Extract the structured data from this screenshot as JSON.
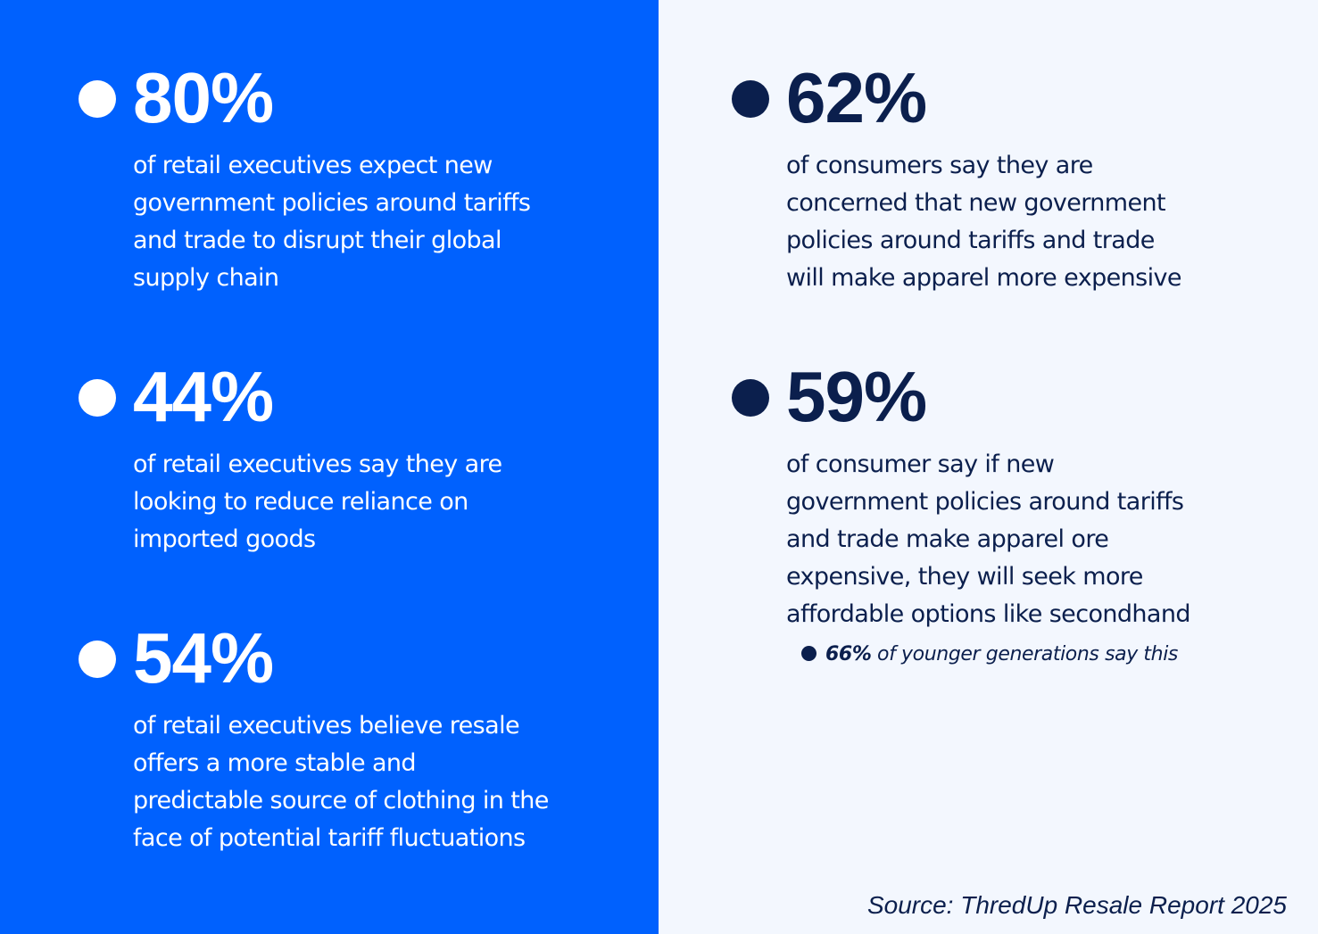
{
  "colors": {
    "left_panel_bg": "#0061fe",
    "right_panel_bg": "#f3f7fe",
    "left_text": "#ffffff",
    "right_text": "#0b1f4d"
  },
  "left_stats": [
    {
      "value": "80%",
      "lines": [
        "of retail executives expect new",
        "government policies around tariffs",
        "and trade to disrupt their global",
        "supply chain"
      ]
    },
    {
      "value": "44%",
      "lines": [
        "of retail executives say they are",
        "looking to reduce reliance on",
        "imported goods"
      ]
    },
    {
      "value": "54%",
      "lines": [
        "of retail executives believe resale",
        "offers a more stable and",
        "predictable source of clothing in the",
        "face of potential tariff fluctuations"
      ]
    }
  ],
  "right_stats": [
    {
      "value": "62%",
      "lines": [
        "of consumers say they are",
        "concerned that new government",
        "policies around tariffs and trade",
        "will make apparel more expensive"
      ]
    },
    {
      "value": "59%",
      "lines": [
        "of consumer say if new",
        "government policies around tariffs",
        "and trade make apparel ore",
        "expensive, they will seek more",
        "affordable options like secondhand"
      ]
    }
  ],
  "sub_bullet": {
    "strong": "66%",
    "text": " of younger generations say this"
  },
  "source": "Source: ThredUp Resale Report 2025"
}
